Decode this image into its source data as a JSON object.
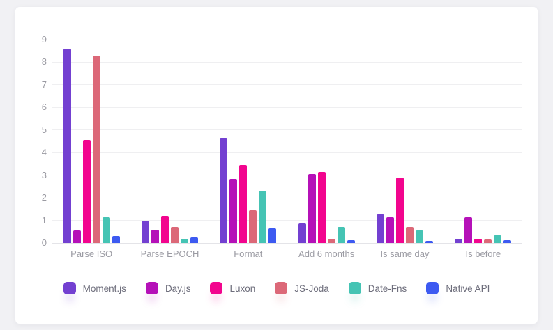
{
  "page": {
    "background_color": "#f1f1f4",
    "card_background_color": "#ffffff"
  },
  "chart_data": {
    "type": "bar",
    "title": "",
    "xlabel": "",
    "ylabel": "",
    "categories": [
      "Parse ISO",
      "Parse EPOCH",
      "Format",
      "Add 6 months",
      "Is same day",
      "Is before"
    ],
    "series": [
      {
        "name": "Moment.js",
        "color": "#7340d1",
        "values": [
          8.6,
          1.0,
          4.65,
          0.85,
          1.25,
          0.2
        ]
      },
      {
        "name": "Day.js",
        "color": "#b511b8",
        "values": [
          0.55,
          0.6,
          2.85,
          3.05,
          1.15,
          1.15
        ]
      },
      {
        "name": "Luxon",
        "color": "#f2058e",
        "values": [
          4.55,
          1.2,
          3.45,
          3.15,
          2.9,
          0.2
        ]
      },
      {
        "name": "JS-Joda",
        "color": "#dc6878",
        "values": [
          8.3,
          0.7,
          1.45,
          0.2,
          0.7,
          0.17
        ]
      },
      {
        "name": "Date-Fns",
        "color": "#45c4b4",
        "values": [
          1.15,
          0.2,
          2.3,
          0.7,
          0.55,
          0.35
        ]
      },
      {
        "name": "Native API",
        "color": "#3d5af1",
        "values": [
          0.3,
          0.25,
          0.65,
          0.12,
          0.08,
          0.12
        ]
      }
    ],
    "ylim": [
      0,
      9
    ],
    "yticks": [
      "0",
      "1",
      "2",
      "3",
      "4",
      "5",
      "6",
      "7",
      "8",
      "9"
    ],
    "grid": true,
    "legend_position": "bottom"
  }
}
